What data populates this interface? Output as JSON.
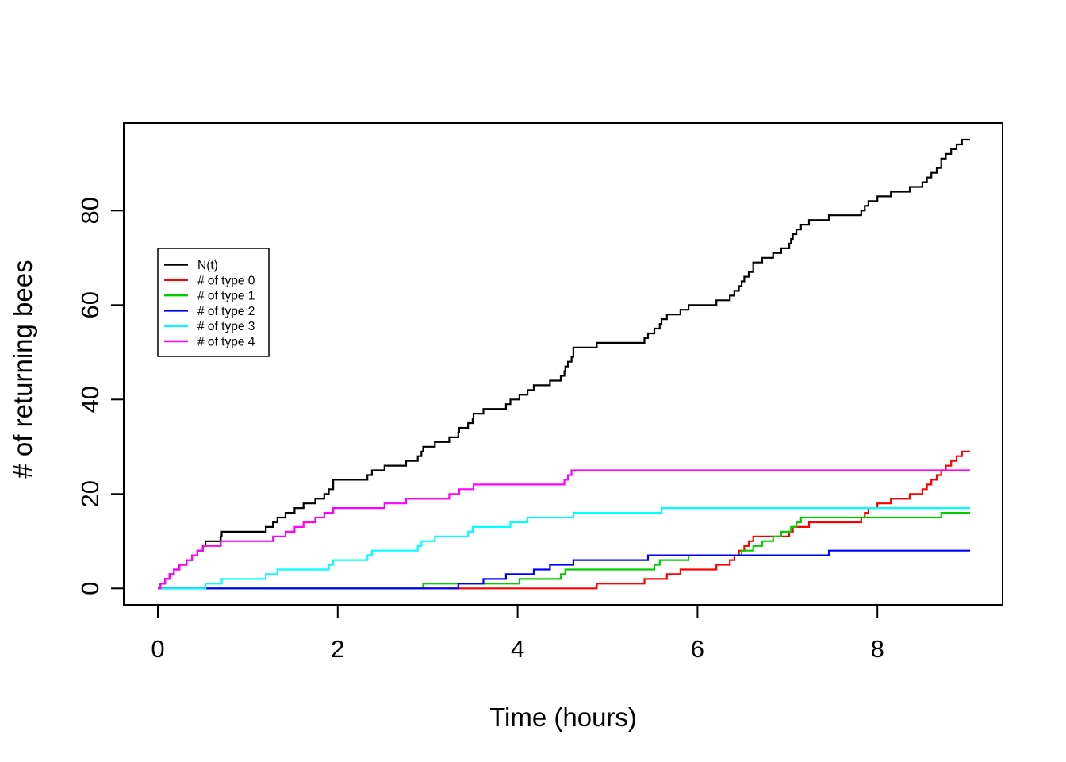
{
  "chart_data": {
    "type": "line",
    "subtype": "step-counting-process",
    "title": "",
    "xlabel": "Time (hours)",
    "ylabel": "# of returning bees",
    "xlim": [
      -0.38,
      9.39
    ],
    "ylim": [
      -3.5,
      98.5
    ],
    "x_ticks": [
      0,
      2,
      4,
      6,
      8
    ],
    "y_ticks": [
      0,
      20,
      40,
      60,
      80
    ],
    "grid": "off",
    "legend_position": "upper-left-inside",
    "t_start": 0,
    "t_end": 9.03,
    "note": "All series are cumulative counts starting at 0; each listed time is a +1 jump. N(t) is the total: it jumps at every jump time of every type series.",
    "series": [
      {
        "name": "N(t)",
        "color": "#000000",
        "derived": "sum-of-types",
        "final_count": 95,
        "jump_times": []
      },
      {
        "name": "# of type 0",
        "color": "#FF0000",
        "final_count": 29,
        "jump_times": [
          4.88,
          5.41,
          5.66,
          5.81,
          6.21,
          6.36,
          6.41,
          6.46,
          6.52,
          6.57,
          6.62,
          7.02,
          7.06,
          7.24,
          7.82,
          7.86,
          7.9,
          8.0,
          8.15,
          8.36,
          8.5,
          8.55,
          8.6,
          8.66,
          8.71,
          8.76,
          8.82,
          8.88,
          8.94
        ]
      },
      {
        "name": "# of type 1",
        "color": "#00CD00",
        "final_count": 16,
        "jump_times": [
          2.95,
          4.02,
          4.48,
          4.53,
          5.52,
          5.58,
          5.9,
          6.49,
          6.62,
          6.72,
          6.84,
          6.93,
          7.04,
          7.1,
          7.15,
          8.71
        ]
      },
      {
        "name": "# of type 2",
        "color": "#0000FF",
        "final_count": 8,
        "jump_times": [
          3.34,
          3.62,
          3.87,
          4.18,
          4.36,
          4.62,
          5.45,
          7.46
        ]
      },
      {
        "name": "# of type 3",
        "color": "#00FFFF",
        "final_count": 17,
        "jump_times": [
          0.53,
          0.71,
          1.2,
          1.33,
          1.9,
          1.95,
          2.33,
          2.38,
          2.89,
          2.93,
          3.08,
          3.45,
          3.5,
          3.92,
          4.11,
          4.62,
          5.6
        ]
      },
      {
        "name": "# of type 4",
        "color": "#FF00FF",
        "final_count": 25,
        "jump_times": [
          0.03,
          0.08,
          0.13,
          0.18,
          0.24,
          0.32,
          0.38,
          0.44,
          0.5,
          0.7,
          1.28,
          1.42,
          1.52,
          1.62,
          1.75,
          1.85,
          1.95,
          2.52,
          2.76,
          3.24,
          3.35,
          3.51,
          4.52,
          4.56,
          4.6
        ]
      }
    ],
    "legend": {
      "entries": [
        {
          "label": "N(t)",
          "color": "#000000"
        },
        {
          "label": "# of type 0",
          "color": "#FF0000"
        },
        {
          "label": "# of type 1",
          "color": "#00CD00"
        },
        {
          "label": "# of type 2",
          "color": "#0000FF"
        },
        {
          "label": "# of type 3",
          "color": "#00FFFF"
        },
        {
          "label": "# of type 4",
          "color": "#FF00FF"
        }
      ]
    }
  }
}
